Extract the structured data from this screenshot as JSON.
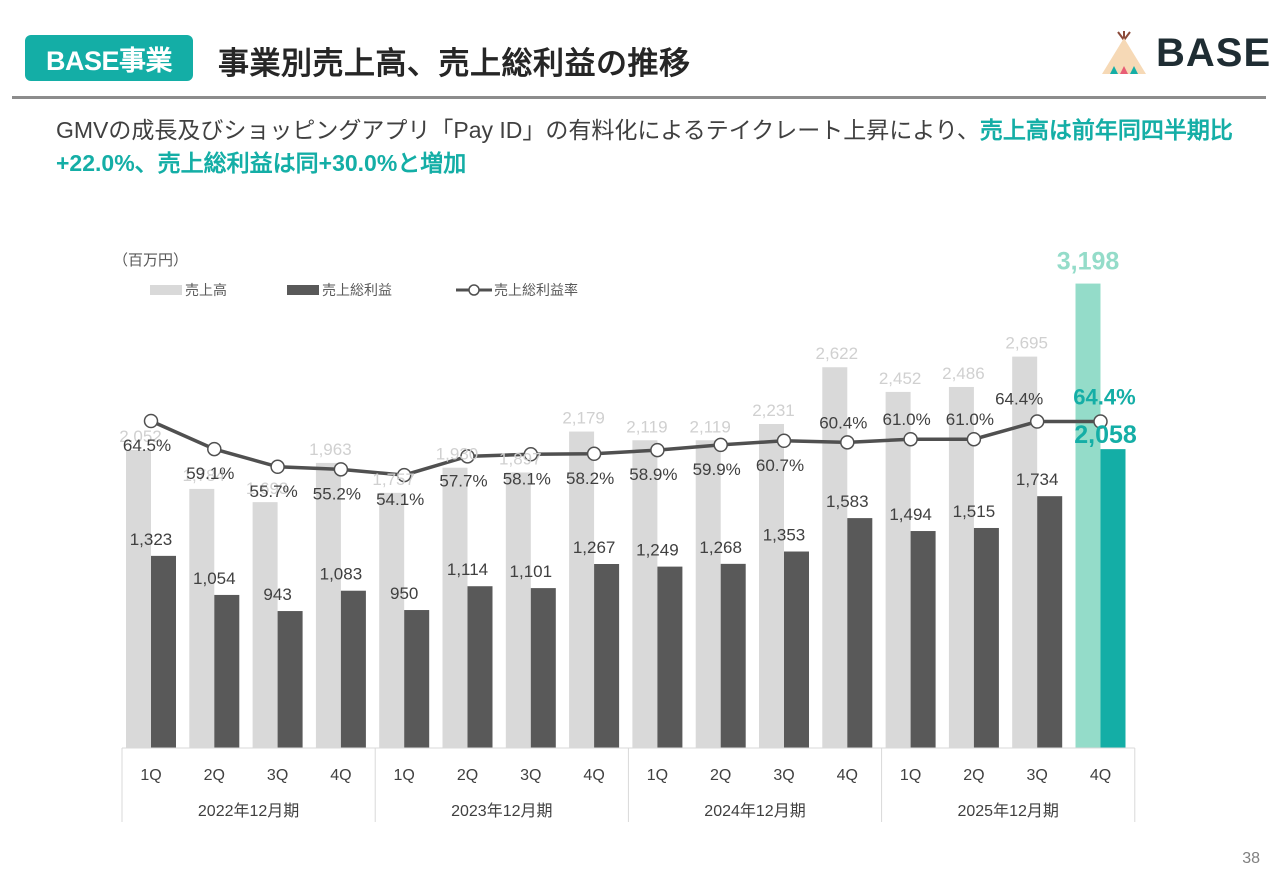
{
  "header": {
    "badge": "BASE事業",
    "title": "事業別売上高、売上総利益の推移",
    "logo_text": "BASE"
  },
  "lead": {
    "normal": "GMVの成長及びショッピングアプリ「Pay ID」の有料化によるテイクレート上昇により、",
    "highlight": "売上高は前年同四半期比+22.0%、売上総利益は同+30.0%と増加"
  },
  "page_number": "38",
  "colors": {
    "accent": "#14aea6",
    "revenue": "#d9d9d9",
    "gross_profit": "#595959",
    "revenue_highlight": "#94dcc9",
    "gross_profit_highlight": "#14aea6",
    "margin_line": "#505050"
  },
  "chart_data": {
    "type": "bar",
    "unit_label": "（百万円）",
    "legend": [
      "売上高",
      "売上総利益",
      "売上総利益率"
    ],
    "legend_position": "top-left",
    "categories": [
      "1Q",
      "2Q",
      "3Q",
      "4Q",
      "1Q",
      "2Q",
      "3Q",
      "4Q",
      "1Q",
      "2Q",
      "3Q",
      "4Q",
      "1Q",
      "2Q",
      "3Q",
      "4Q"
    ],
    "groups": [
      "2022年12月期",
      "2023年12月期",
      "2024年12月期",
      "2025年12月期"
    ],
    "series": [
      {
        "name": "売上高",
        "type": "bar",
        "values": [
          2052,
          1784,
          1693,
          1963,
          1757,
          1930,
          1897,
          2179,
          2119,
          2119,
          2231,
          2622,
          2452,
          2486,
          2695,
          3198
        ]
      },
      {
        "name": "売上総利益",
        "type": "bar",
        "values": [
          1323,
          1054,
          943,
          1083,
          950,
          1114,
          1101,
          1267,
          1249,
          1268,
          1353,
          1583,
          1494,
          1515,
          1734,
          2058
        ]
      },
      {
        "name": "売上総利益率",
        "type": "line",
        "unit": "%",
        "values": [
          64.5,
          59.1,
          55.7,
          55.2,
          54.1,
          57.7,
          58.1,
          58.2,
          58.9,
          59.9,
          60.7,
          60.4,
          61.0,
          61.0,
          64.4,
          64.4
        ]
      }
    ],
    "highlight_index": 15,
    "ylim": [
      0,
      3500
    ],
    "grid": false
  }
}
